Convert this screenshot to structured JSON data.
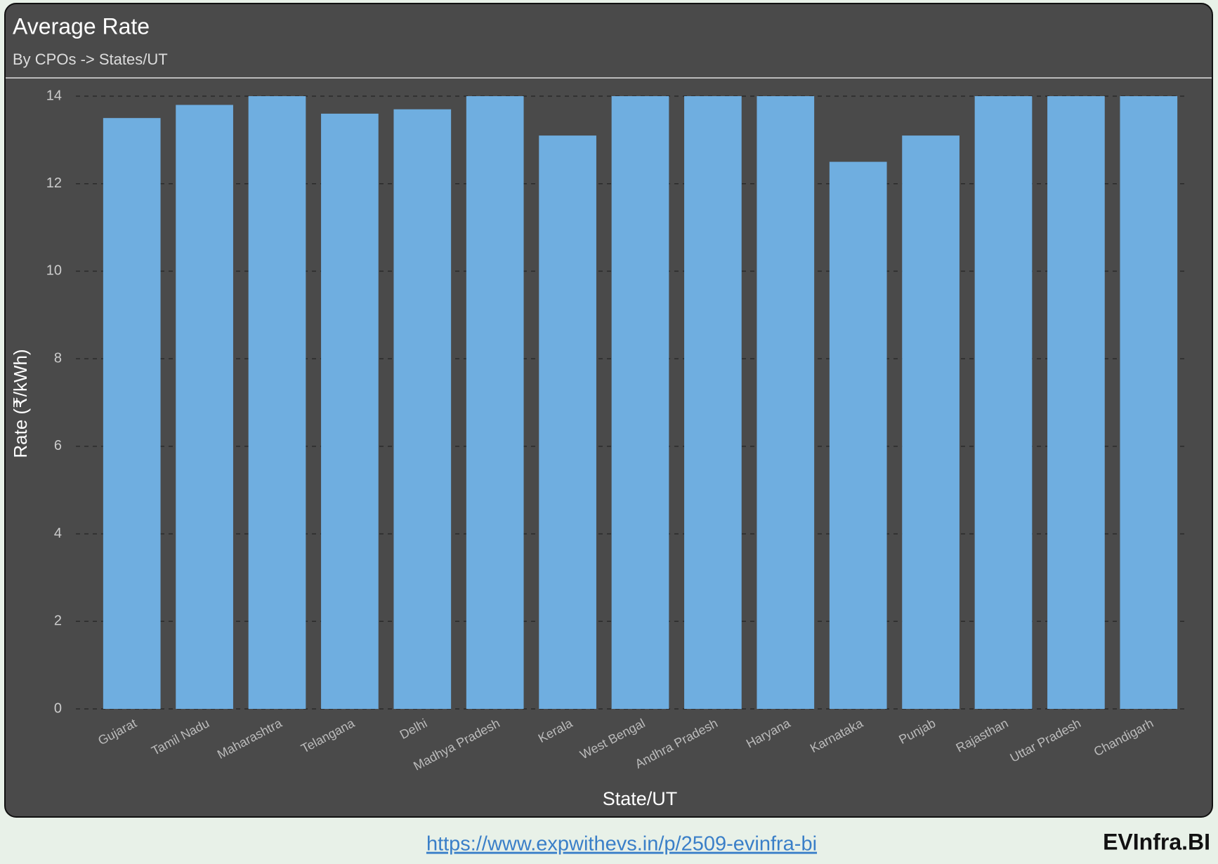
{
  "chart_data": {
    "type": "bar",
    "title": "Average Rate",
    "subtitle": "By CPOs -> States/UT",
    "x_label": "State/UT",
    "y_label": "Rate (₹/kWh)",
    "categories": [
      "Gujarat",
      "Tamil Nadu",
      "Maharashtra",
      "Telangana",
      "Delhi",
      "Madhya Pradesh",
      "Kerala",
      "West Bengal",
      "Andhra Pradesh",
      "Haryana",
      "Karnataka",
      "Punjab",
      "Rajasthan",
      "Uttar Pradesh",
      "Chandigarh"
    ],
    "values": [
      13.5,
      13.8,
      14,
      13.6,
      13.7,
      14,
      13.1,
      14,
      14,
      14,
      12.5,
      13.1,
      14,
      14,
      14
    ],
    "color": "#6faee0",
    "ylim": [
      0,
      14
    ],
    "yticks": [
      0,
      2,
      4,
      6,
      8,
      10,
      12,
      14
    ],
    "grid": true
  },
  "footer": {
    "link": "https://www.expwithevs.in/p/2509-evinfra-bi",
    "brand": "EVInfra.BI"
  }
}
